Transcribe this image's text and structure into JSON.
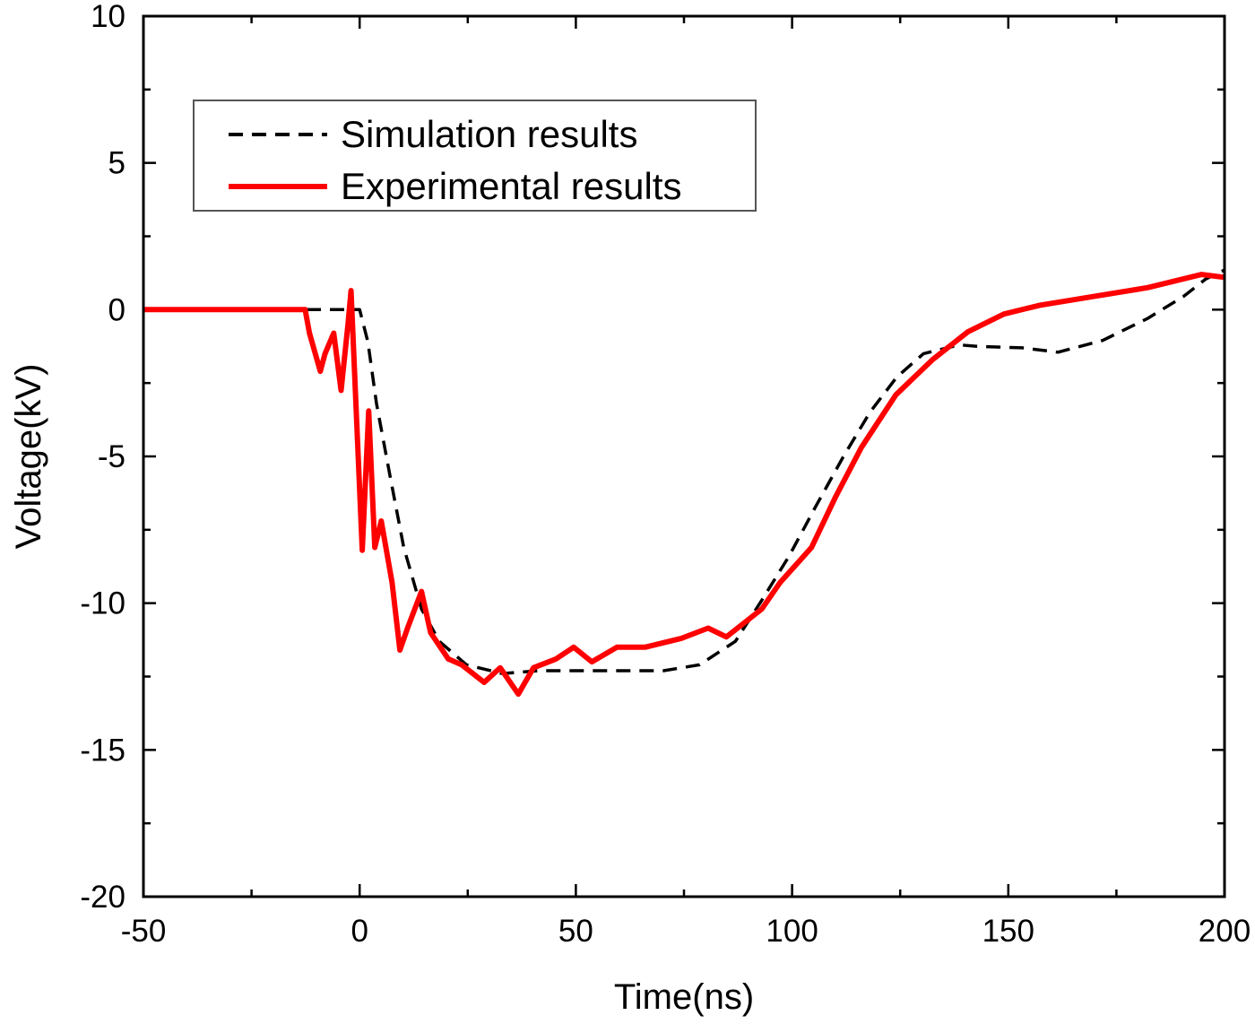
{
  "chart_data": {
    "type": "line",
    "title": "",
    "xlabel": "Time(ns)",
    "ylabel": "Voltage(kV)",
    "xlim": [
      -50,
      200
    ],
    "ylim": [
      -20,
      10
    ],
    "xticks": [
      -50,
      0,
      50,
      100,
      150,
      200
    ],
    "yticks": [
      -20,
      -15,
      -10,
      -5,
      0,
      5,
      10
    ],
    "xtick_labels": [
      "-50",
      "0",
      "50",
      "100",
      "150",
      "200"
    ],
    "ytick_labels": [
      "-20",
      "-15",
      "-10",
      "-5",
      "0",
      "5",
      "10"
    ],
    "grid": false,
    "legend_position": "top-left",
    "series": [
      {
        "name": "Simulation results",
        "color": "#000000",
        "style": "dashed",
        "x": [
          -50,
          0,
          1.9,
          3.9,
          7,
          10.2,
          14.3,
          18.4,
          24.7,
          33,
          41.3,
          57.8,
          70.3,
          78.6,
          86.9,
          93,
          99.3,
          105.5,
          111.7,
          118,
          124.2,
          130.4,
          138.7,
          142.8,
          153.2,
          161.5,
          171.8,
          182.2,
          190.5,
          195.7,
          200
        ],
        "y": [
          0,
          0,
          -1.1,
          -3.2,
          -5.65,
          -8.1,
          -10.2,
          -11.3,
          -12.1,
          -12.4,
          -12.3,
          -12.3,
          -12.3,
          -12.1,
          -11.3,
          -9.9,
          -8.4,
          -6.7,
          -5.05,
          -3.5,
          -2.3,
          -1.5,
          -1.2,
          -1.25,
          -1.3,
          -1.45,
          -1.05,
          -0.3,
          0.45,
          1.05,
          1.35
        ]
      },
      {
        "name": "Experimental results",
        "color": "#ff0000",
        "style": "solid",
        "x": [
          -50,
          -12.6,
          -11.6,
          -9.1,
          -8,
          -6,
          -4.3,
          -2.7,
          -2,
          0.6,
          2.1,
          3.5,
          5,
          7.5,
          9.3,
          11.2,
          14.3,
          16.4,
          20.5,
          23.6,
          28.8,
          32.5,
          36.7,
          40.2,
          45.4,
          49.5,
          53.7,
          59.5,
          66,
          74.4,
          80.6,
          84.8,
          93,
          97.2,
          104.5,
          110,
          116,
          124,
          132.5,
          140.7,
          149,
          157.3,
          169.8,
          182.2,
          194.7,
          200
        ],
        "y": [
          0,
          0,
          -0.8,
          -2.1,
          -1.5,
          -0.8,
          -2.75,
          -0.5,
          0.65,
          -8.2,
          -3.45,
          -8.1,
          -7.2,
          -9.3,
          -11.6,
          -10.8,
          -9.6,
          -11,
          -11.9,
          -12.1,
          -12.7,
          -12.2,
          -13.1,
          -12.2,
          -11.9,
          -11.5,
          -12.0,
          -11.5,
          -11.5,
          -11.2,
          -10.85,
          -11.15,
          -10.2,
          -9.3,
          -8.1,
          -6.4,
          -4.7,
          -2.9,
          -1.7,
          -0.75,
          -0.15,
          0.15,
          0.45,
          0.75,
          1.2,
          1.1
        ]
      }
    ]
  }
}
